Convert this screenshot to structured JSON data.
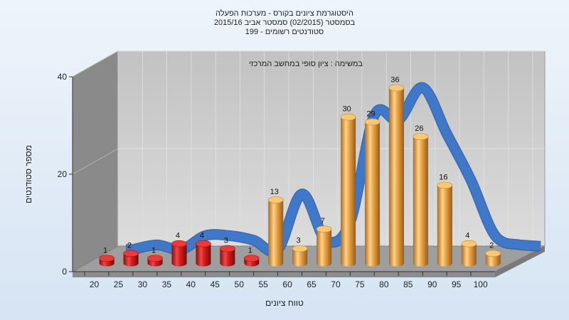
{
  "chart_data": {
    "type": "bar",
    "title_lines": [
      "היסטוגרמת ציונים בקורס - מערכות הפעלה",
      "בסמסטר  (02/2015)  סמסטר אביב 2015/16",
      "סטודנטים רשומים - 199"
    ],
    "subtitle": "במשימה : ציון סופי במחשב המרכזי",
    "xlabel": "טווח ציונים",
    "ylabel": "מספר סטודנטים",
    "ylim": [
      0,
      40
    ],
    "yticks": [
      0,
      20,
      40
    ],
    "grid": true,
    "categories": [
      "20",
      "25",
      "30",
      "35",
      "40",
      "45",
      "50",
      "55",
      "60",
      "65",
      "70",
      "75",
      "80",
      "85",
      "90",
      "95",
      "100"
    ],
    "values": [
      1,
      2,
      1,
      4,
      4,
      3,
      1,
      13,
      3,
      7,
      30,
      29,
      36,
      26,
      16,
      4,
      2
    ],
    "series": [
      {
        "values": [
          1,
          2,
          1,
          4,
          4,
          3,
          1,
          13,
          3,
          7,
          30,
          29,
          36,
          26,
          16,
          4,
          2
        ]
      }
    ],
    "bar_colors": {
      "fail": "#d42020",
      "pass": "#e0a040"
    },
    "curve_color": "#3f78c8",
    "wall_color": "#c9c9c9",
    "side_wall_color": "#8a8a8a"
  }
}
